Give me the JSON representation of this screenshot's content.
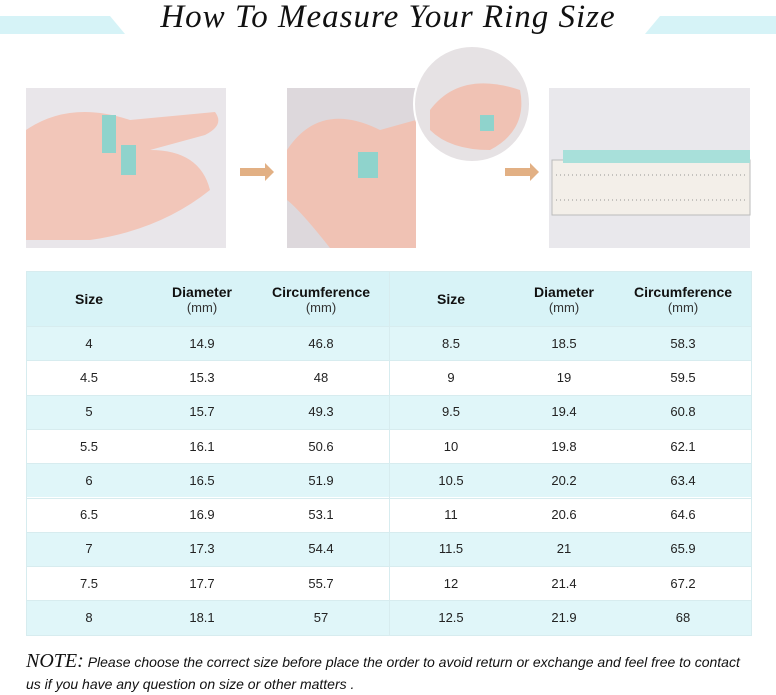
{
  "header": {
    "title": "How To Measure Your Ring Size"
  },
  "table": {
    "headers": [
      {
        "name": "Size"
      },
      {
        "name": "Diameter",
        "unit": "(mm)"
      },
      {
        "name": "Circumference",
        "unit": "(mm)"
      }
    ],
    "left_rows": [
      [
        4,
        14.9,
        46.8
      ],
      [
        4.5,
        15.3,
        48
      ],
      [
        5,
        15.7,
        49.3
      ],
      [
        5.5,
        16.1,
        50.6
      ],
      [
        6,
        16.5,
        51.9
      ],
      [
        6.5,
        16.9,
        53.1
      ],
      [
        7,
        17.3,
        54.4
      ],
      [
        7.5,
        17.7,
        55.7
      ],
      [
        8,
        18.1,
        57
      ]
    ],
    "right_rows": [
      [
        8.5,
        18.5,
        58.3
      ],
      [
        9,
        19,
        59.5
      ],
      [
        9.5,
        19.4,
        60.8
      ],
      [
        10,
        19.8,
        62.1
      ],
      [
        10.5,
        20.2,
        63.4
      ],
      [
        11,
        20.6,
        64.6
      ],
      [
        11.5,
        21,
        65.9
      ],
      [
        12,
        21.4,
        67.2
      ],
      [
        12.5,
        21.9,
        68
      ]
    ]
  },
  "note": {
    "label": "NOTE:",
    "text": "Please choose the correct size before place the order to avoid return or exchange and feel free to contact us if you have any question on size or other matters ."
  }
}
